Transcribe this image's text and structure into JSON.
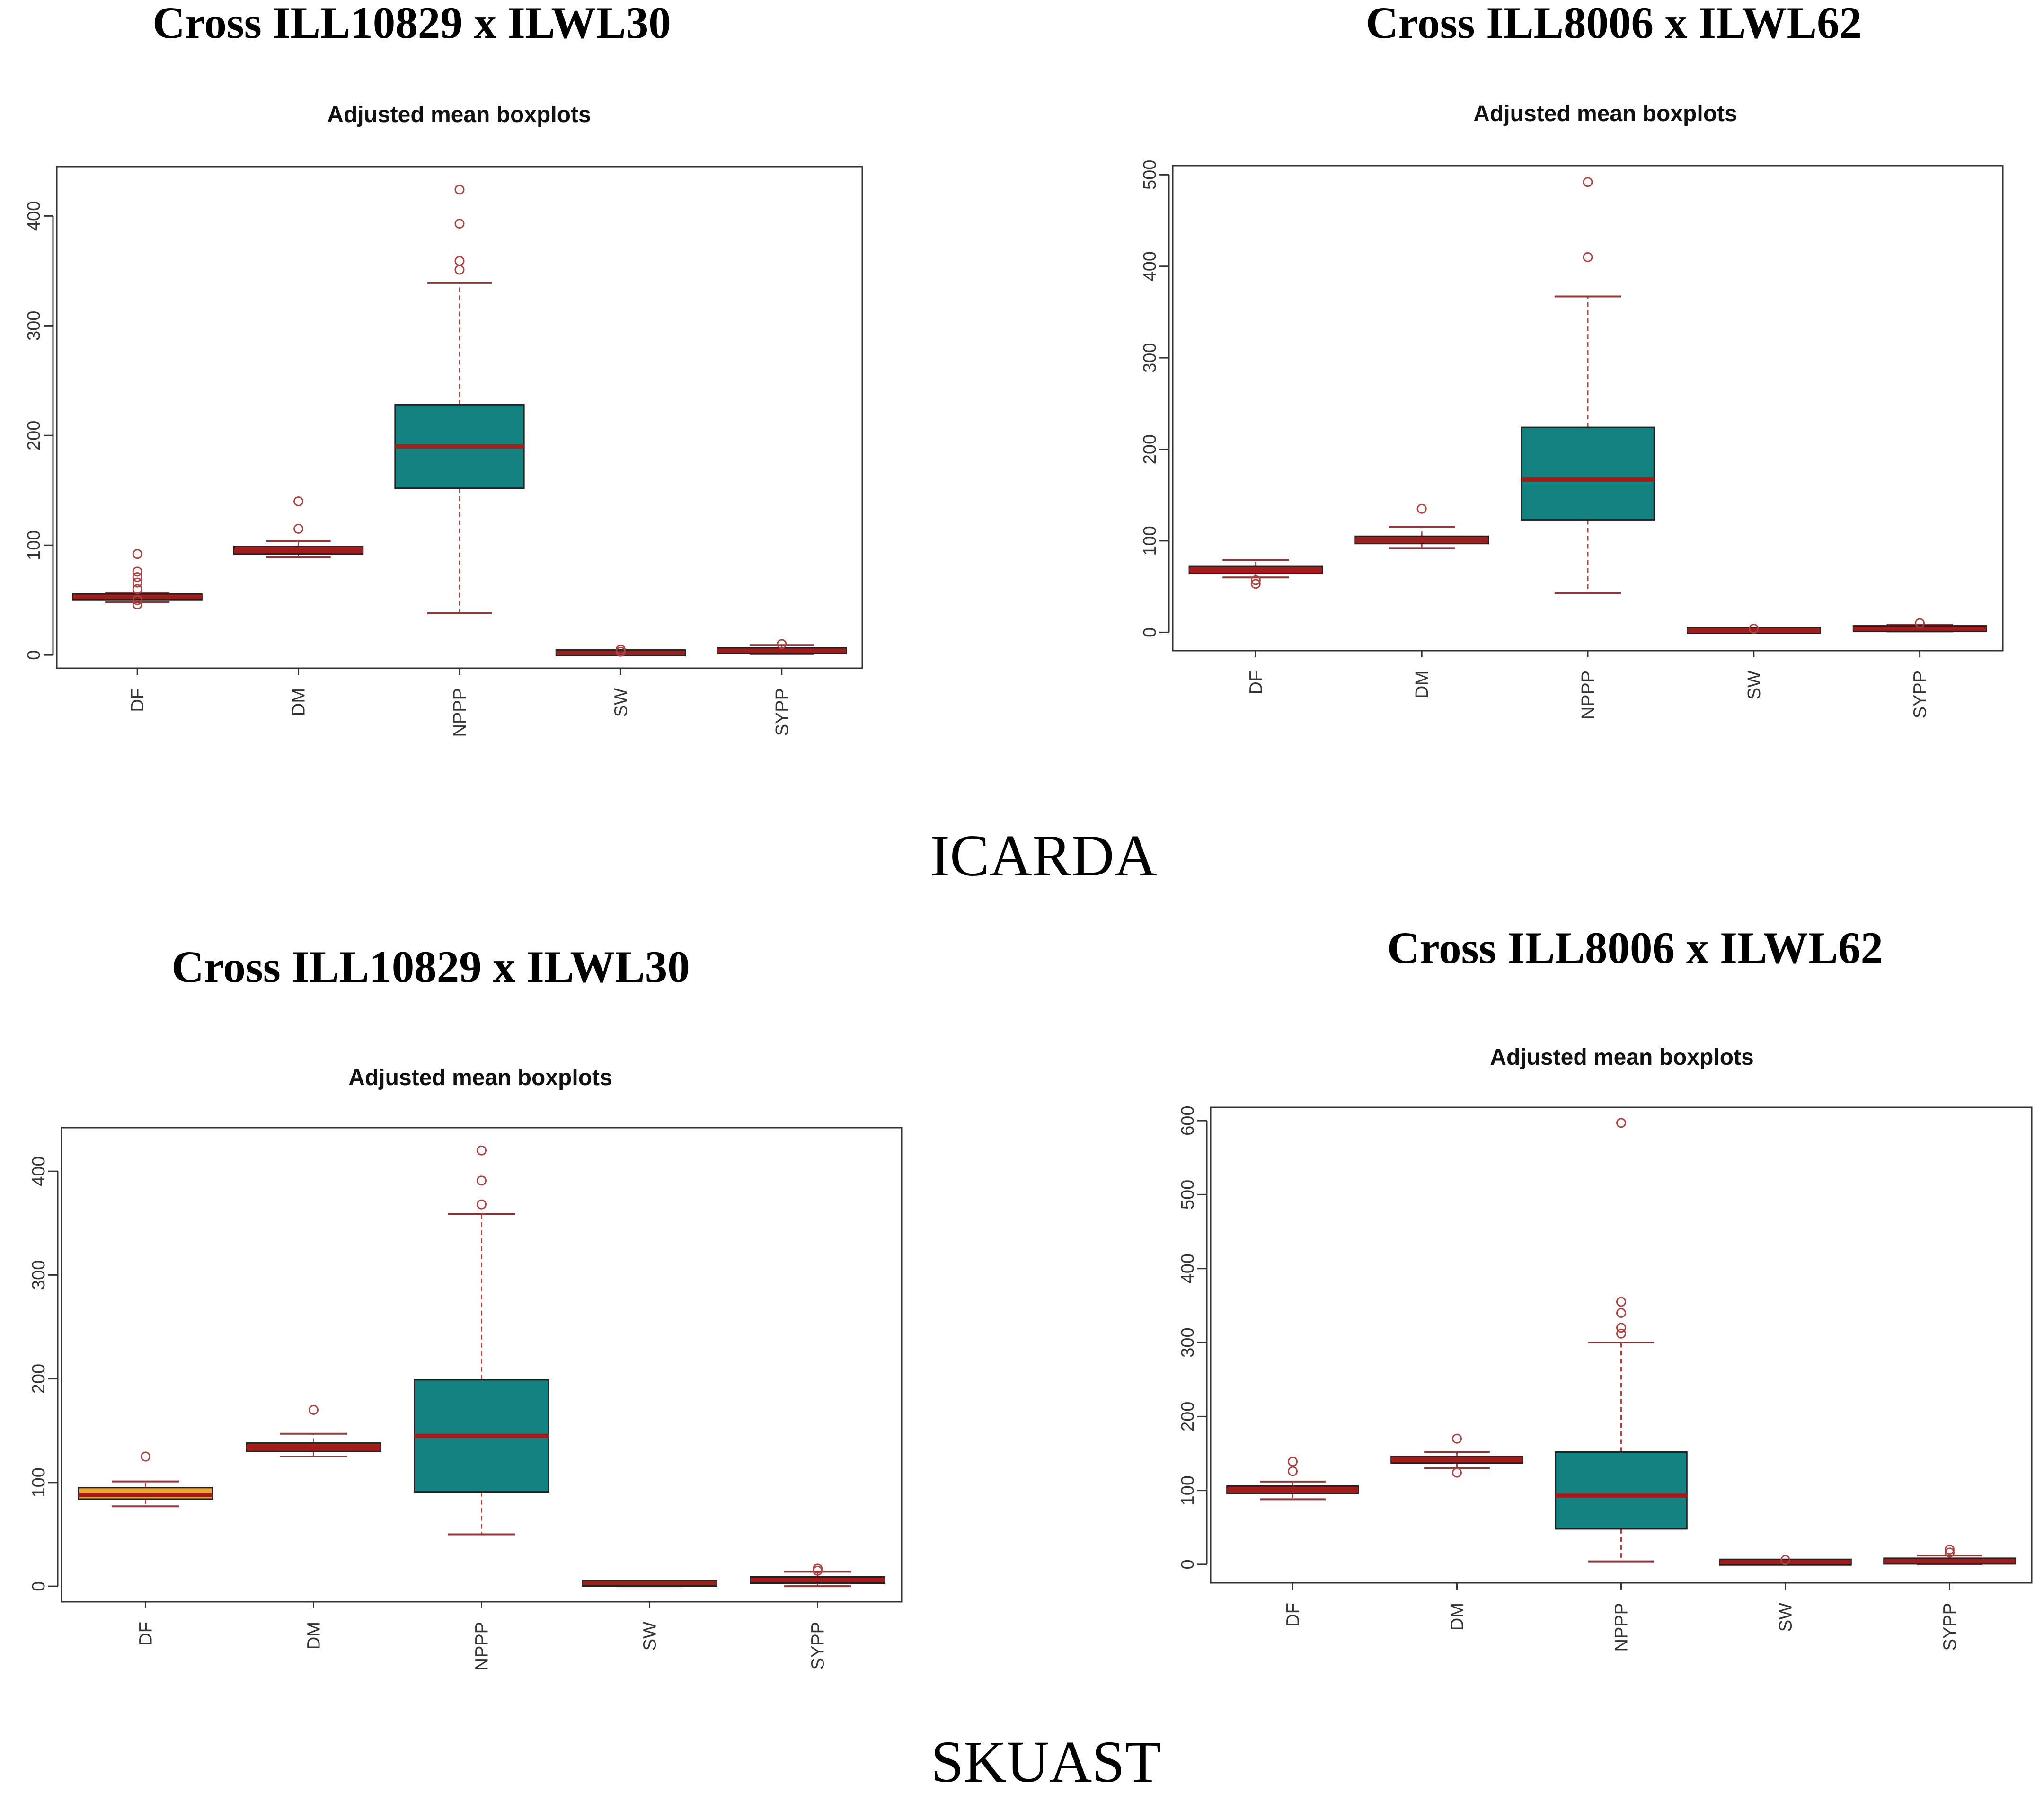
{
  "figure": {
    "section_labels": [
      "ICARDA",
      "SKUAST"
    ]
  },
  "colors": {
    "teal_box": "#138280",
    "red_box": "#b01c1c",
    "orange_box": "#f2a52b",
    "median": "#a31c1c",
    "outlier": "#a94444",
    "axis": "#333333"
  },
  "chart_data": [
    {
      "type": "boxplot",
      "location": "ICARDA",
      "cross_title": "Cross ILL10829 x ILWL30",
      "title": "Adjusted mean boxplots",
      "ylim": [
        -12,
        445
      ],
      "yticks": [
        0,
        100,
        200,
        300,
        400
      ],
      "categories": [
        "DF",
        "DM",
        "NPPP",
        "SW",
        "SYPP"
      ],
      "boxes": [
        {
          "label": "DF",
          "whisker_low": 48,
          "q1": 51,
          "median": 53,
          "q3": 55,
          "whisker_high": 57,
          "outliers": [
            46,
            50,
            60,
            66,
            71,
            76,
            92
          ],
          "color": "red"
        },
        {
          "label": "DM",
          "whisker_low": 89,
          "q1": 92,
          "median": 95,
          "q3": 99,
          "whisker_high": 104,
          "outliers": [
            115,
            140
          ],
          "color": "red"
        },
        {
          "label": "NPPP",
          "whisker_low": 38,
          "q1": 152,
          "median": 190,
          "q3": 228,
          "whisker_high": 339,
          "outliers": [
            351,
            359,
            393,
            424
          ],
          "color": "teal"
        },
        {
          "label": "SW",
          "whisker_low": 0,
          "q1": 1,
          "median": 2,
          "q3": 3,
          "whisker_high": 4,
          "outliers": [
            3,
            5
          ],
          "color": "red"
        },
        {
          "label": "SYPP",
          "whisker_low": 1,
          "q1": 2,
          "median": 4,
          "q3": 6,
          "whisker_high": 9,
          "outliers": [
            10
          ],
          "color": "red"
        }
      ]
    },
    {
      "type": "boxplot",
      "location": "ICARDA",
      "cross_title": "Cross ILL8006 x ILWL62",
      "title": "Adjusted mean boxplots",
      "ylim": [
        -20,
        510
      ],
      "yticks": [
        0,
        100,
        200,
        300,
        400,
        500
      ],
      "categories": [
        "DF",
        "DM",
        "NPPP",
        "SW",
        "SYPP"
      ],
      "boxes": [
        {
          "label": "DF",
          "whisker_low": 60,
          "q1": 64,
          "median": 68,
          "q3": 72,
          "whisker_high": 79,
          "outliers": [
            53,
            57
          ],
          "color": "red"
        },
        {
          "label": "DM",
          "whisker_low": 92,
          "q1": 97,
          "median": 101,
          "q3": 105,
          "whisker_high": 115,
          "outliers": [
            135
          ],
          "color": "red"
        },
        {
          "label": "NPPP",
          "whisker_low": 43,
          "q1": 123,
          "median": 167,
          "q3": 224,
          "whisker_high": 367,
          "outliers": [
            410,
            492
          ],
          "color": "teal"
        },
        {
          "label": "SW",
          "whisker_low": 0,
          "q1": 1,
          "median": 2,
          "q3": 3,
          "whisker_high": 4,
          "outliers": [
            4
          ],
          "color": "red"
        },
        {
          "label": "SYPP",
          "whisker_low": 1,
          "q1": 2,
          "median": 4,
          "q3": 6,
          "whisker_high": 8,
          "outliers": [
            10
          ],
          "color": "red"
        }
      ]
    },
    {
      "type": "boxplot",
      "location": "SKUAST",
      "cross_title": "Cross ILL10829 x ILWL30",
      "title": "Adjusted mean boxplots",
      "ylim": [
        -15,
        442
      ],
      "yticks": [
        0,
        100,
        200,
        300,
        400
      ],
      "categories": [
        "DF",
        "DM",
        "NPPP",
        "SW",
        "SYPP"
      ],
      "boxes": [
        {
          "label": "DF",
          "whisker_low": 77,
          "q1": 84,
          "median": 88,
          "q3": 95,
          "whisker_high": 101,
          "outliers": [
            125
          ],
          "color": "orange"
        },
        {
          "label": "DM",
          "whisker_low": 125,
          "q1": 130,
          "median": 134,
          "q3": 138,
          "whisker_high": 147,
          "outliers": [
            170
          ],
          "color": "red"
        },
        {
          "label": "NPPP",
          "whisker_low": 50,
          "q1": 91,
          "median": 145,
          "q3": 199,
          "whisker_high": 359,
          "outliers": [
            368,
            391,
            420
          ],
          "color": "teal"
        },
        {
          "label": "SW",
          "whisker_low": 0,
          "q1": 2,
          "median": 3,
          "q3": 4,
          "whisker_high": 5,
          "outliers": [],
          "color": "red"
        },
        {
          "label": "SYPP",
          "whisker_low": 0,
          "q1": 3,
          "median": 6,
          "q3": 9,
          "whisker_high": 14,
          "outliers": [
            15,
            17
          ],
          "color": "red"
        }
      ]
    },
    {
      "type": "boxplot",
      "location": "SKUAST",
      "cross_title": "Cross ILL8006 x ILWL62",
      "title": "Adjusted mean boxplots",
      "ylim": [
        -25,
        618
      ],
      "yticks": [
        0,
        100,
        200,
        300,
        400,
        500,
        600
      ],
      "categories": [
        "DF",
        "DM",
        "NPPP",
        "SW",
        "SYPP"
      ],
      "boxes": [
        {
          "label": "DF",
          "whisker_low": 88,
          "q1": 96,
          "median": 101,
          "q3": 106,
          "whisker_high": 112,
          "outliers": [
            126,
            139
          ],
          "color": "red"
        },
        {
          "label": "DM",
          "whisker_low": 130,
          "q1": 137,
          "median": 142,
          "q3": 146,
          "whisker_high": 152,
          "outliers": [
            124,
            170
          ],
          "color": "red"
        },
        {
          "label": "NPPP",
          "whisker_low": 4,
          "q1": 48,
          "median": 93,
          "q3": 152,
          "whisker_high": 300,
          "outliers": [
            312,
            320,
            340,
            355,
            597
          ],
          "color": "teal"
        },
        {
          "label": "SW",
          "whisker_low": 0,
          "q1": 2,
          "median": 3,
          "q3": 4,
          "whisker_high": 5,
          "outliers": [
            6
          ],
          "color": "red"
        },
        {
          "label": "SYPP",
          "whisker_low": 0,
          "q1": 2,
          "median": 4,
          "q3": 7,
          "whisker_high": 12,
          "outliers": [
            16,
            20
          ],
          "color": "red"
        }
      ]
    }
  ]
}
